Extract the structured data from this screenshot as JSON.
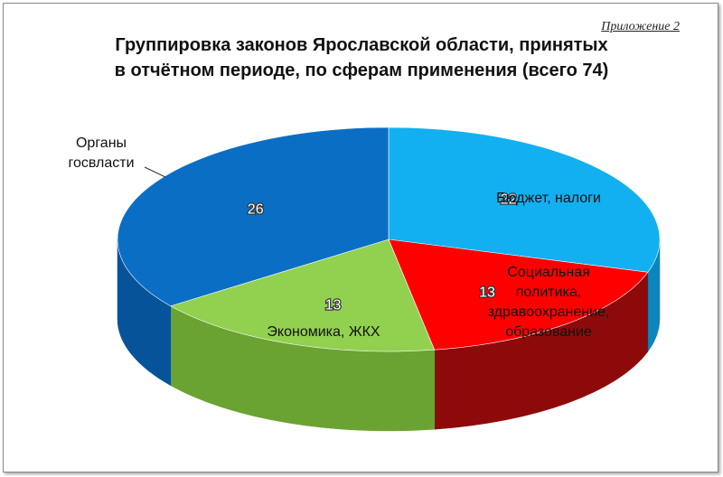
{
  "appendix": "Приложение 2",
  "title_line1": "Группировка законов Ярославской области, принятых",
  "title_line2": "в отчётном периоде, по сферам применения (всего 74)",
  "chart_data": {
    "type": "pie",
    "title": "Группировка законов Ярославской области, принятых в отчётном периоде, по сферам применения (всего 74)",
    "total": 74,
    "slices": [
      {
        "label": "Бюджет, налоги",
        "value": 22,
        "color": "#12b0f0",
        "side": "#0b86bd"
      },
      {
        "label": "Социальная политика, здравоохранение, образование",
        "value": 13,
        "color": "#ff0000",
        "side": "#8e0a0a"
      },
      {
        "label": "Экономика, ЖКХ",
        "value": 13,
        "color": "#92d050",
        "side": "#6aa332"
      },
      {
        "label": "Органы госвласти",
        "value": 26,
        "color": "#0a6fc4",
        "side": "#07539a"
      }
    ],
    "labels_text": {
      "budget": "Бюджет, налоги",
      "social": [
        "Социальная",
        "политика,",
        "здравоохранение,",
        "образование"
      ],
      "economy": "Экономика, ЖКХ",
      "organs": [
        "Органы",
        "госвласти"
      ]
    }
  }
}
